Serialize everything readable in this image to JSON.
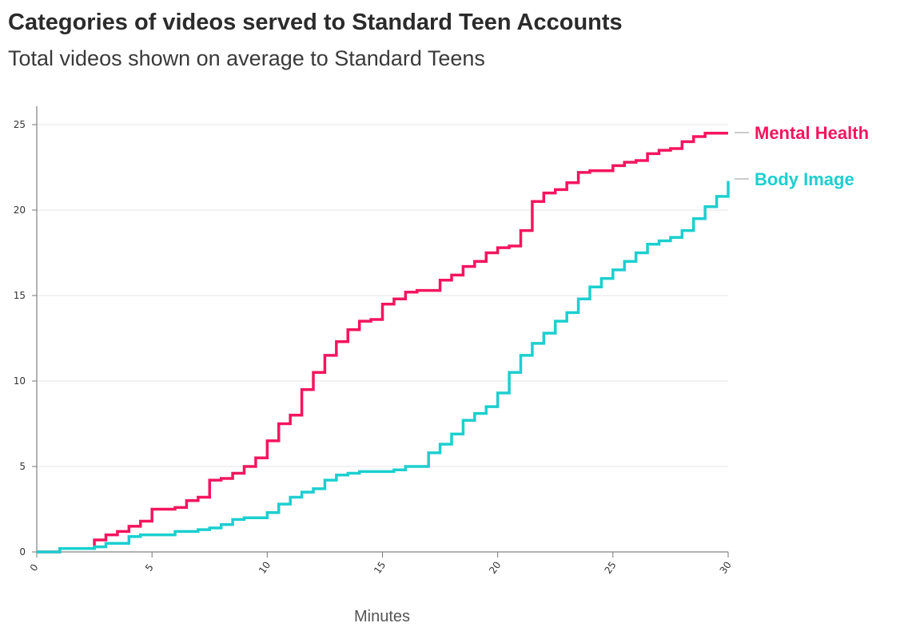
{
  "chart_data": {
    "type": "line",
    "title": "Categories of videos served to Standard Teen Accounts",
    "subtitle": "Total videos shown on average to Standard Teens",
    "xlabel": "Minutes",
    "ylabel": "",
    "xlim": [
      0,
      30
    ],
    "ylim": [
      0,
      26
    ],
    "xticks": [
      0,
      5,
      10,
      15,
      20,
      25,
      30
    ],
    "yticks": [
      0,
      5,
      10,
      15,
      20,
      25
    ],
    "xtick_labels": [
      "0",
      "5",
      "10",
      "15",
      "20",
      "25",
      "30"
    ],
    "ytick_labels": [
      "0",
      "5",
      "10",
      "15",
      "20",
      "25"
    ],
    "grid": "horizontal",
    "legend": "direct labels at line ends (right)",
    "series": [
      {
        "name": "Mental Health",
        "color": "#f5155f",
        "x": [
          0,
          1,
          2.5,
          3,
          3.5,
          4,
          4.5,
          5,
          6,
          6.5,
          7,
          7.5,
          8,
          8.5,
          9,
          9.5,
          10,
          10.5,
          11,
          11.5,
          12,
          12.5,
          13,
          13.5,
          14,
          14.5,
          15,
          15.5,
          16,
          16.5,
          17,
          17.5,
          18,
          18.5,
          19,
          19.5,
          20,
          20.5,
          21,
          21.5,
          22,
          22.5,
          23,
          23.5,
          24,
          24.5,
          25,
          25.5,
          26,
          26.5,
          27,
          27.5,
          28,
          28.5,
          29,
          29.5,
          30
        ],
        "values": [
          0,
          0.2,
          0.7,
          1.0,
          1.2,
          1.5,
          1.8,
          2.5,
          2.6,
          3.0,
          3.2,
          4.2,
          4.3,
          4.6,
          5.0,
          5.5,
          6.5,
          7.5,
          8.0,
          9.5,
          10.5,
          11.5,
          12.3,
          13.0,
          13.5,
          13.6,
          14.5,
          14.8,
          15.2,
          15.3,
          15.3,
          15.9,
          16.2,
          16.7,
          17.0,
          17.5,
          17.8,
          17.9,
          18.8,
          20.5,
          21.0,
          21.2,
          21.6,
          22.2,
          22.3,
          22.3,
          22.6,
          22.8,
          22.9,
          23.3,
          23.5,
          23.6,
          24.0,
          24.3,
          24.5,
          24.5,
          24.5
        ]
      },
      {
        "name": "Body Image",
        "color": "#1ccfcf",
        "x": [
          0,
          1,
          2.5,
          3,
          3.5,
          4,
          4.5,
          5,
          6,
          6.5,
          7,
          7.5,
          8,
          8.5,
          9,
          9.5,
          10,
          10.5,
          11,
          11.5,
          12,
          12.5,
          13,
          13.5,
          14,
          14.5,
          15,
          15.5,
          16,
          16.5,
          17,
          17.5,
          18,
          18.5,
          19,
          19.5,
          20,
          20.5,
          21,
          21.5,
          22,
          22.5,
          23,
          23.5,
          24,
          24.5,
          25,
          25.5,
          26,
          26.5,
          27,
          27.5,
          28,
          28.5,
          29,
          29.5,
          30
        ],
        "values": [
          0,
          0.2,
          0.3,
          0.5,
          0.5,
          0.9,
          1.0,
          1.0,
          1.2,
          1.2,
          1.3,
          1.4,
          1.6,
          1.9,
          2.0,
          2.0,
          2.3,
          2.8,
          3.2,
          3.5,
          3.7,
          4.2,
          4.5,
          4.6,
          4.7,
          4.7,
          4.7,
          4.8,
          5.0,
          5.0,
          5.8,
          6.3,
          6.9,
          7.7,
          8.1,
          8.5,
          9.3,
          10.5,
          11.5,
          12.2,
          12.8,
          13.5,
          14.0,
          14.8,
          15.5,
          16.0,
          16.5,
          17.0,
          17.5,
          18.0,
          18.2,
          18.4,
          18.8,
          19.5,
          20.2,
          20.8,
          21.7
        ]
      }
    ]
  }
}
